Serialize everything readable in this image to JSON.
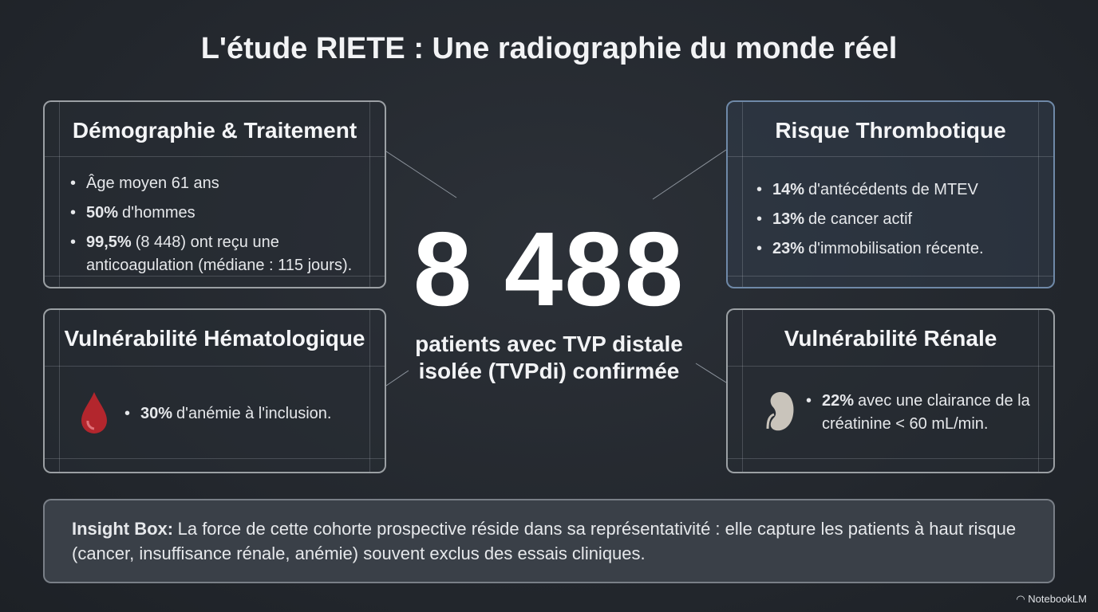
{
  "header": {
    "title": "L'étude RIETE : Une radiographie du monde réel"
  },
  "center": {
    "number": "8 488",
    "caption_lines": [
      "patients avec TVP distale",
      "isolée (TVPdi) confirmée"
    ]
  },
  "cards": [
    {
      "title": "Démographie & Traitement",
      "items": [
        {
          "text": "Âge moyen 61 ans"
        },
        {
          "bold": "50%",
          "text": "d'hommes"
        },
        {
          "bold": "99,5%",
          "text": "(8 448) ont reçu une anticoagulation (médiane : 115 jours)."
        }
      ]
    },
    {
      "title": "Risque Thrombotique",
      "items": [
        {
          "bold": "14%",
          "text": "d'antécédents de MTEV"
        },
        {
          "bold": "13%",
          "text": "de cancer actif"
        },
        {
          "bold": "23%",
          "text": "d'immobilisation récente."
        }
      ]
    },
    {
      "title": "Vulnérabilité Hématologique",
      "items": [
        {
          "bold": "30%",
          "text": "d'anémie à l'inclusion."
        }
      ]
    },
    {
      "title": "Vulnérabilité Rénale",
      "items": [
        {
          "bold": "22%",
          "text": "avec une clairance de la créatinine < 60 mL/min."
        }
      ]
    }
  ],
  "insight": {
    "label": "Insight Box:",
    "text": "La force de cette cohorte prospective réside dans sa représentativité : elle capture les patients à haut risque (cancer, insuffisance rénale, anémie) souvent exclus des essais cliniques."
  },
  "watermark": "NotebookLM"
}
